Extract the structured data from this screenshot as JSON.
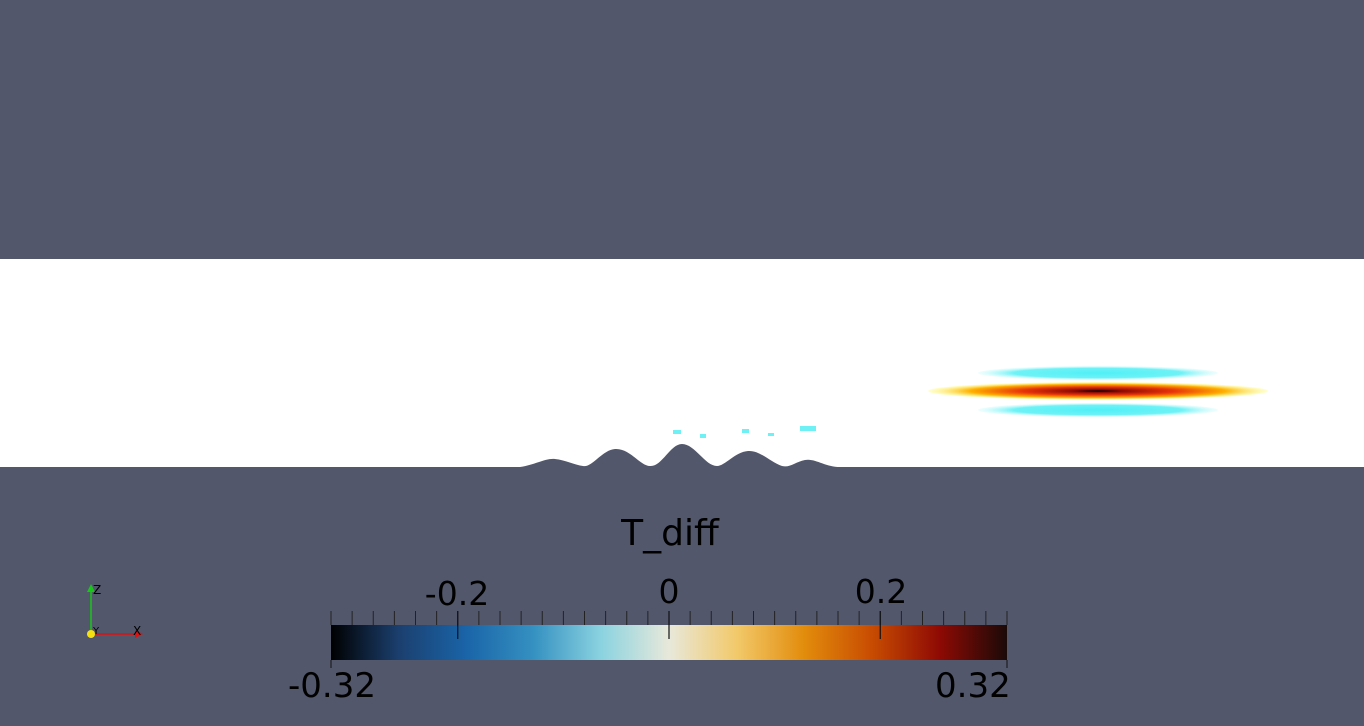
{
  "scalar_bar": {
    "title": "T_diff",
    "range_min_label": "-0.32",
    "range_max_label": "0.32",
    "range": [
      -0.32,
      0.32
    ],
    "ticks": [
      {
        "value": -0.2,
        "label": "-0.2"
      },
      {
        "value": 0,
        "label": "0"
      },
      {
        "value": 0.2,
        "label": "0.2"
      }
    ],
    "colormap_stops": [
      "#000000",
      "#1b3f6e",
      "#1a64a8",
      "#3591c1",
      "#8bd3e0",
      "#e8e8da",
      "#f2c96a",
      "#e28c0c",
      "#c84c02",
      "#8e0a04",
      "#1a0a08"
    ]
  },
  "orientation_axes": {
    "x_label": "X",
    "y_label": "Y",
    "z_label": "Z",
    "x_color": "#e01010",
    "y_color": "#f5e011",
    "z_color": "#19c719"
  },
  "scene": {
    "background_color": "#52576b",
    "domain_color": "#ffffff"
  }
}
